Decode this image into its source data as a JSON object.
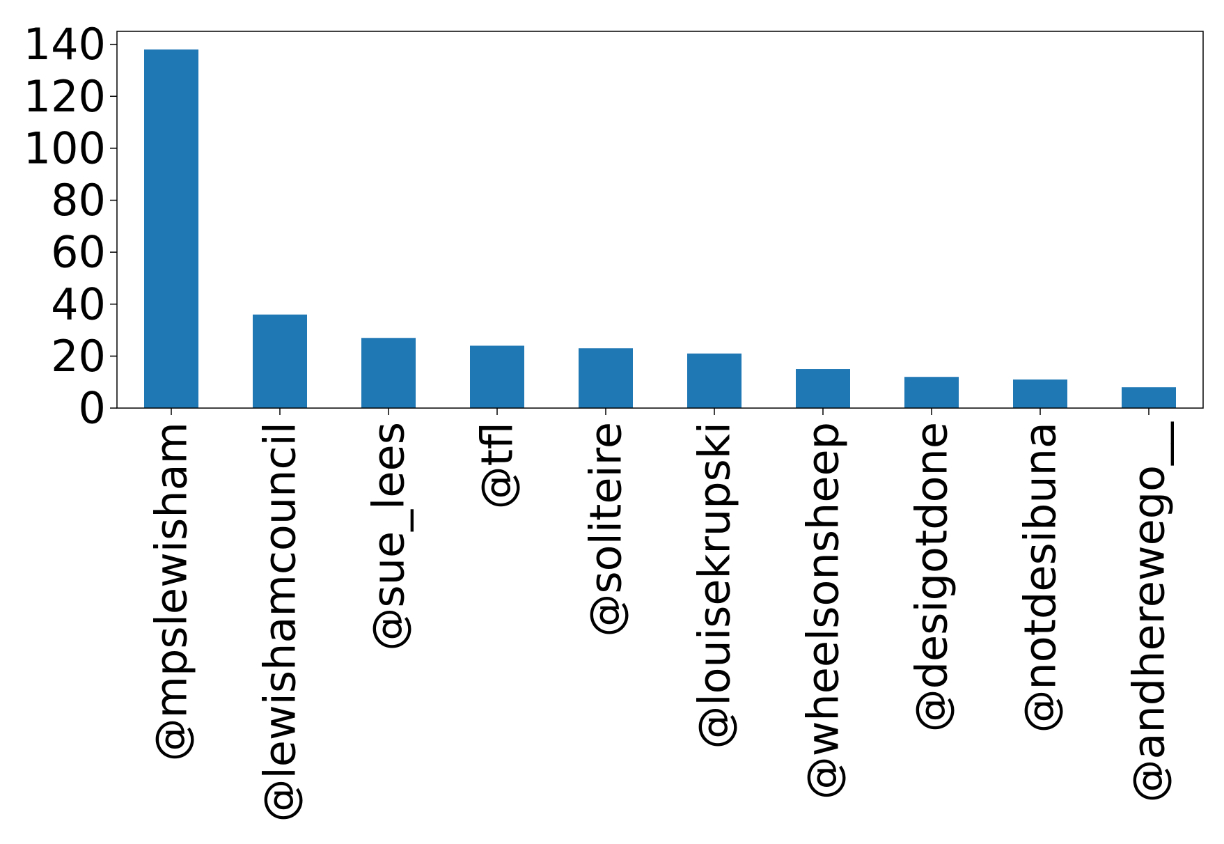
{
  "chart_data": {
    "type": "bar",
    "title": "",
    "xlabel": "",
    "ylabel": "",
    "categories": [
      "@mpslewisham",
      "@lewishamcouncil",
      "@sue_lees",
      "@tfl",
      "@soliteire",
      "@louisekrupski",
      "@wheelsonsheep",
      "@desigotdone",
      "@notdesibuna",
      "@andherewego__"
    ],
    "values": [
      138,
      36,
      27,
      24,
      23,
      21,
      15,
      12,
      11,
      8
    ],
    "ylim": [
      0,
      145
    ],
    "yticks": [
      0,
      20,
      40,
      60,
      80,
      100,
      120,
      140
    ],
    "grid": false,
    "legend": "none",
    "bar_color": "#1f77b4"
  }
}
